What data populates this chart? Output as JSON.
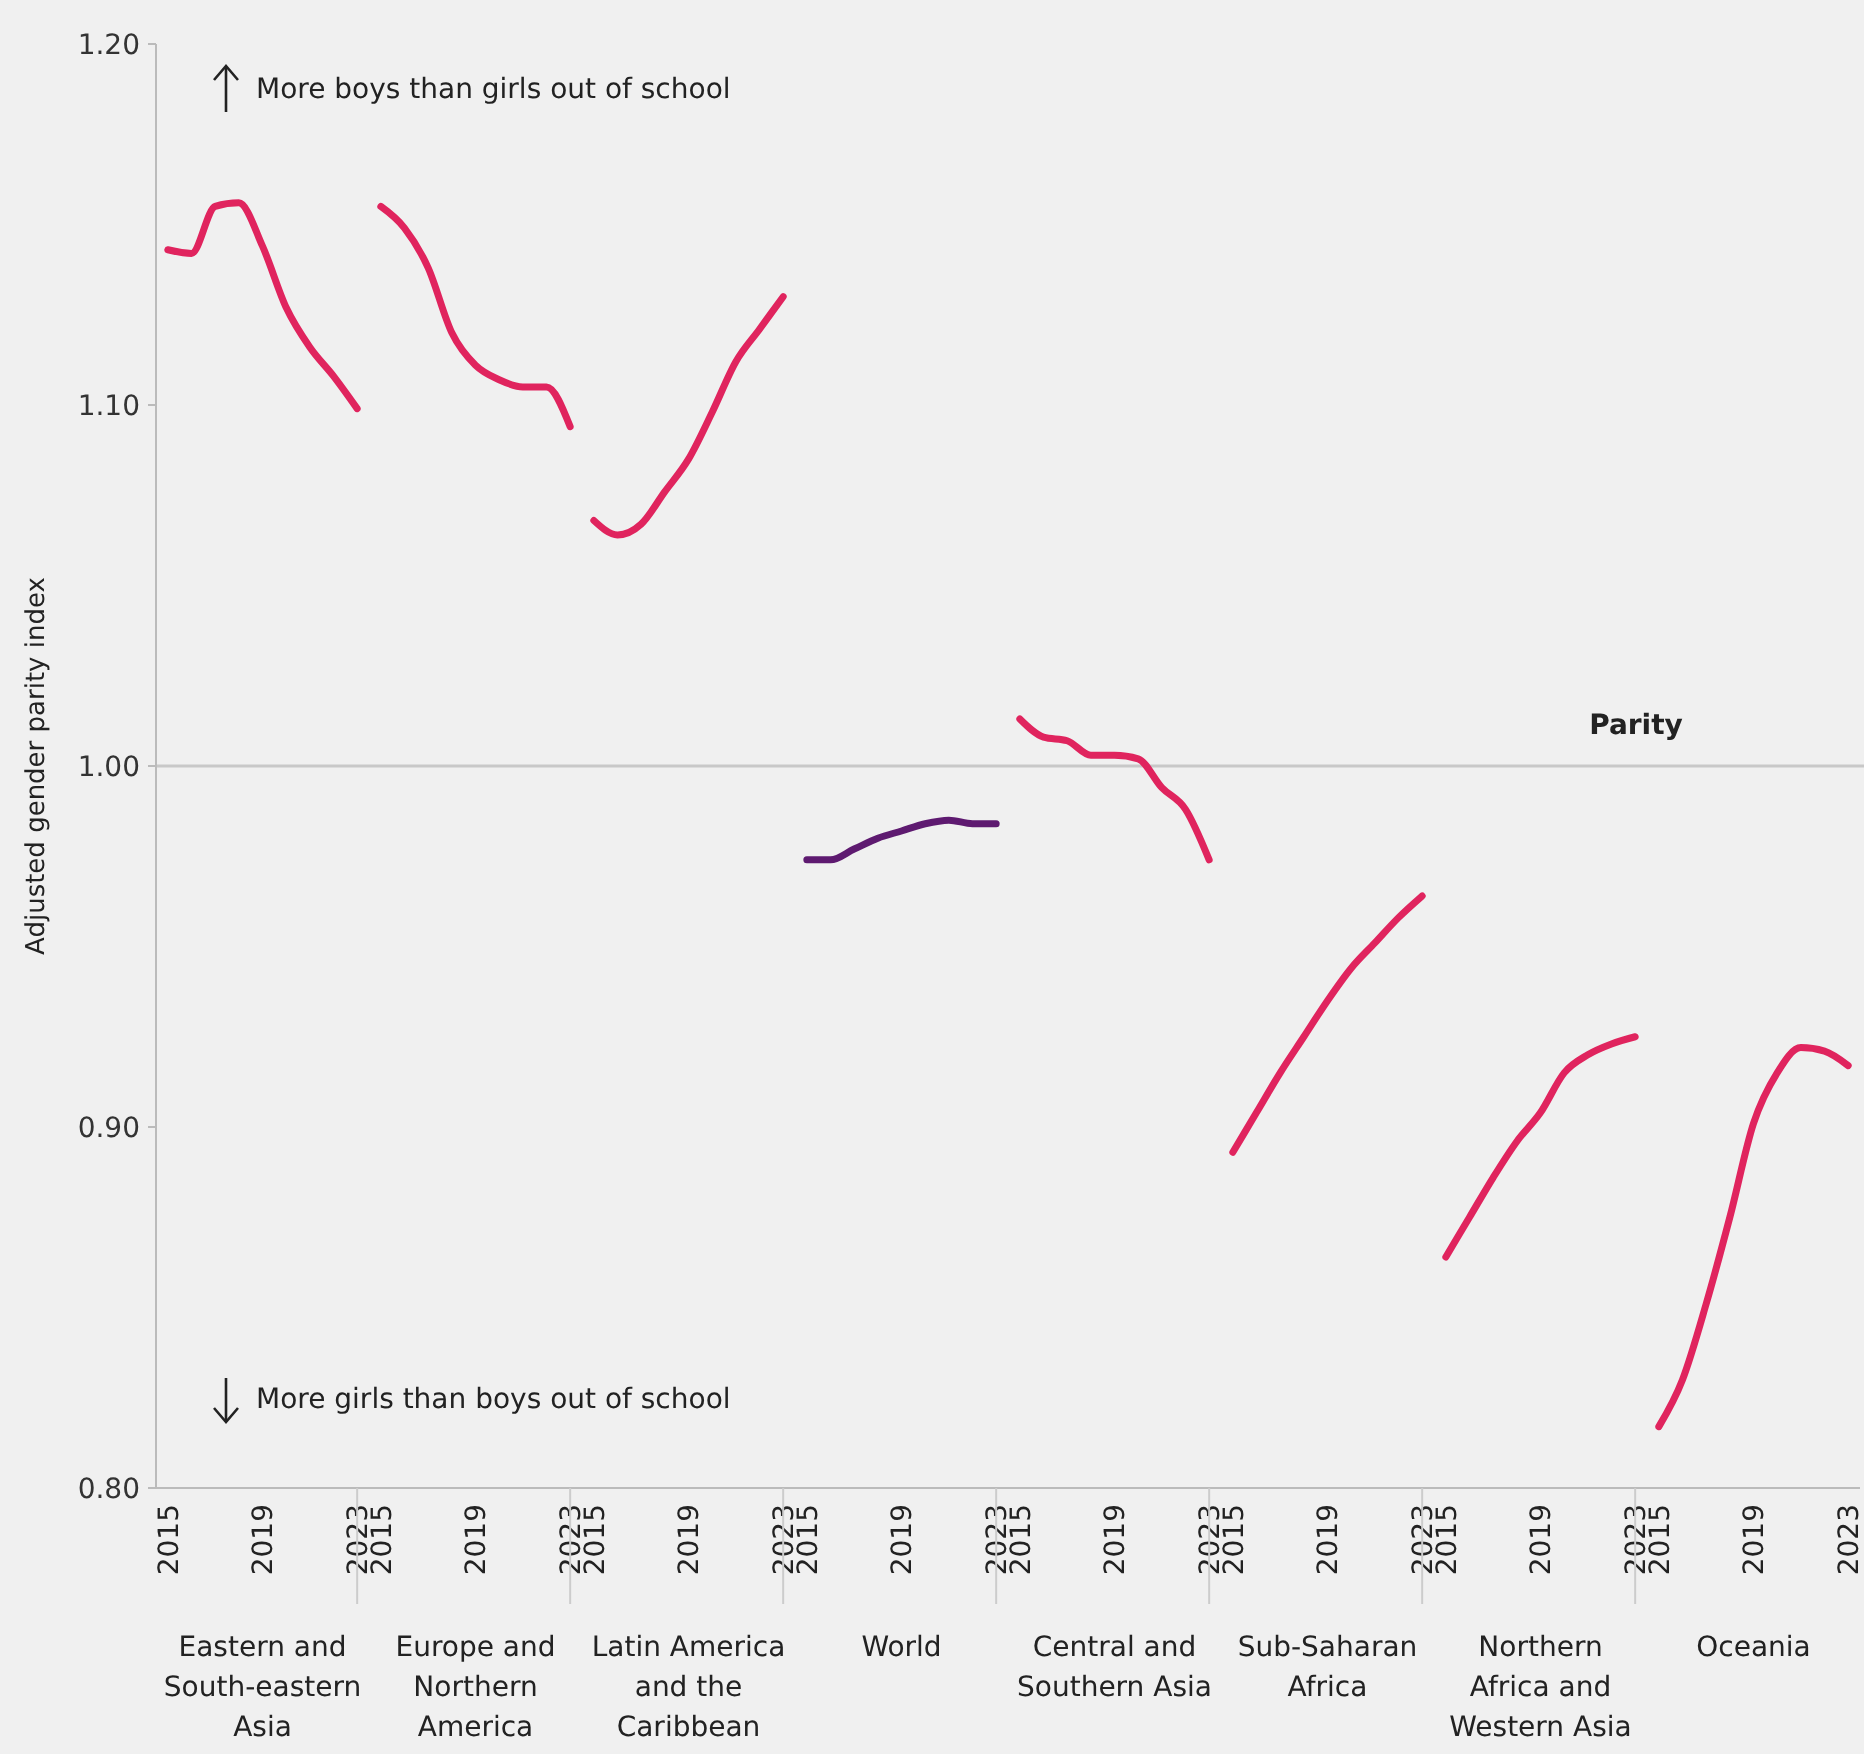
{
  "chart_data": {
    "type": "line",
    "ylabel": "Adjusted gender parity index",
    "categories": [
      "2015",
      null,
      null,
      null,
      "2019",
      null,
      null,
      null,
      "2023",
      "2015",
      null,
      null,
      null,
      "2019",
      null,
      null,
      null,
      "2023",
      "2015",
      null,
      null,
      null,
      "2019",
      null,
      null,
      null,
      "2023",
      "2015",
      null,
      null,
      null,
      "2019",
      null,
      null,
      null,
      "2023",
      "2015",
      null,
      null,
      null,
      "2019",
      null,
      null,
      null,
      "2023",
      "2015",
      null,
      null,
      null,
      "2019",
      null,
      null,
      null,
      "2023",
      "2015",
      null,
      null,
      null,
      "2019",
      null,
      null,
      null,
      "2023",
      "2015",
      null,
      null,
      null,
      "2019",
      null,
      null,
      null,
      "2023"
    ],
    "ylim": [
      0.8,
      1.2
    ],
    "yticks": [
      {
        "value": 0.8,
        "label": "0.80"
      },
      {
        "value": 0.9,
        "label": "0.90"
      },
      {
        "value": 1.0,
        "label": "1.00"
      },
      {
        "value": 1.1,
        "label": "1.10"
      },
      {
        "value": 1.2,
        "label": "1.20"
      }
    ],
    "grid": false,
    "marker": "none",
    "line_style": "solid",
    "ref_lines": [
      {
        "axis": "y",
        "value": 1.0,
        "label": "Parity",
        "color": "#c8c8c8"
      }
    ],
    "annotations": [
      "More boys than girls out of school",
      "More girls than boys out of school",
      "Eastern and South-eastern Asia",
      "Europe and Northern America",
      "Latin America and the Caribbean",
      "World",
      "Central and Southern Asia",
      "Sub-Saharan Africa",
      "Northern Africa and Western Asia",
      "Oceania"
    ],
    "series": [
      {
        "color": "#e0245e",
        "values": [
          1.143,
          1.142,
          1.155,
          1.156,
          1.144,
          1.127,
          1.116,
          1.108,
          1.099,
          null,
          null,
          null,
          null,
          null,
          null,
          null,
          null,
          null,
          null,
          null,
          null,
          null,
          null,
          null,
          null,
          null,
          null,
          null,
          null,
          null,
          null,
          null,
          null,
          null,
          null,
          null,
          null,
          null,
          null,
          null,
          null,
          null,
          null,
          null,
          null,
          null,
          null,
          null,
          null,
          null,
          null,
          null,
          null,
          null,
          null,
          null,
          null,
          null,
          null,
          null,
          null,
          null,
          null,
          null,
          null,
          null,
          null,
          null,
          null,
          null,
          null,
          null
        ]
      },
      {
        "color": "#e0245e",
        "values": [
          null,
          null,
          null,
          null,
          null,
          null,
          null,
          null,
          null,
          1.155,
          1.149,
          1.138,
          1.12,
          1.111,
          1.107,
          1.105,
          1.105,
          1.094,
          null,
          null,
          null,
          null,
          null,
          null,
          null,
          null,
          null,
          null,
          null,
          null,
          null,
          null,
          null,
          null,
          null,
          null,
          null,
          null,
          null,
          null,
          null,
          null,
          null,
          null,
          null,
          null,
          null,
          null,
          null,
          null,
          null,
          null,
          null,
          null,
          null,
          null,
          null,
          null,
          null,
          null,
          null,
          null,
          null,
          null,
          null,
          null,
          null,
          null,
          null,
          null,
          null,
          null
        ]
      },
      {
        "color": "#e0245e",
        "values": [
          null,
          null,
          null,
          null,
          null,
          null,
          null,
          null,
          null,
          null,
          null,
          null,
          null,
          null,
          null,
          null,
          null,
          null,
          1.068,
          1.064,
          1.067,
          1.076,
          1.085,
          1.098,
          1.112,
          1.121,
          1.13,
          null,
          null,
          null,
          null,
          null,
          null,
          null,
          null,
          null,
          null,
          null,
          null,
          null,
          null,
          null,
          null,
          null,
          null,
          null,
          null,
          null,
          null,
          null,
          null,
          null,
          null,
          null,
          null,
          null,
          null,
          null,
          null,
          null,
          null,
          null,
          null,
          null,
          null,
          null,
          null,
          null,
          null,
          null,
          null,
          null
        ]
      },
      {
        "color": "#5e1a70",
        "values": [
          null,
          null,
          null,
          null,
          null,
          null,
          null,
          null,
          null,
          null,
          null,
          null,
          null,
          null,
          null,
          null,
          null,
          null,
          null,
          null,
          null,
          null,
          null,
          null,
          null,
          null,
          null,
          0.974,
          0.974,
          0.977,
          0.98,
          0.982,
          0.984,
          0.985,
          0.984,
          0.984,
          null,
          null,
          null,
          null,
          null,
          null,
          null,
          null,
          null,
          null,
          null,
          null,
          null,
          null,
          null,
          null,
          null,
          null,
          null,
          null,
          null,
          null,
          null,
          null,
          null,
          null,
          null,
          null,
          null,
          null,
          null,
          null,
          null,
          null,
          null,
          null
        ]
      },
      {
        "color": "#e0245e",
        "values": [
          null,
          null,
          null,
          null,
          null,
          null,
          null,
          null,
          null,
          null,
          null,
          null,
          null,
          null,
          null,
          null,
          null,
          null,
          null,
          null,
          null,
          null,
          null,
          null,
          null,
          null,
          null,
          null,
          null,
          null,
          null,
          null,
          null,
          null,
          null,
          null,
          1.013,
          1.008,
          1.007,
          1.003,
          1.003,
          1.002,
          0.994,
          0.988,
          0.974,
          null,
          null,
          null,
          null,
          null,
          null,
          null,
          null,
          null,
          null,
          null,
          null,
          null,
          null,
          null,
          null,
          null,
          null,
          null,
          null,
          null,
          null,
          null,
          null,
          null,
          null,
          null
        ]
      },
      {
        "color": "#e0245e",
        "values": [
          null,
          null,
          null,
          null,
          null,
          null,
          null,
          null,
          null,
          null,
          null,
          null,
          null,
          null,
          null,
          null,
          null,
          null,
          null,
          null,
          null,
          null,
          null,
          null,
          null,
          null,
          null,
          null,
          null,
          null,
          null,
          null,
          null,
          null,
          null,
          null,
          null,
          null,
          null,
          null,
          null,
          null,
          null,
          null,
          null,
          0.893,
          0.904,
          0.915,
          0.925,
          0.935,
          0.944,
          0.951,
          0.958,
          0.964,
          null,
          null,
          null,
          null,
          null,
          null,
          null,
          null,
          null,
          null,
          null,
          null,
          null,
          null,
          null,
          null,
          null,
          null
        ]
      },
      {
        "color": "#e0245e",
        "values": [
          null,
          null,
          null,
          null,
          null,
          null,
          null,
          null,
          null,
          null,
          null,
          null,
          null,
          null,
          null,
          null,
          null,
          null,
          null,
          null,
          null,
          null,
          null,
          null,
          null,
          null,
          null,
          null,
          null,
          null,
          null,
          null,
          null,
          null,
          null,
          null,
          null,
          null,
          null,
          null,
          null,
          null,
          null,
          null,
          null,
          null,
          null,
          null,
          null,
          null,
          null,
          null,
          null,
          null,
          0.864,
          0.875,
          0.886,
          0.896,
          0.904,
          0.915,
          0.92,
          0.923,
          0.925,
          null,
          null,
          null,
          null,
          null,
          null,
          null,
          null,
          null
        ]
      },
      {
        "color": "#e0245e",
        "values": [
          null,
          null,
          null,
          null,
          null,
          null,
          null,
          null,
          null,
          null,
          null,
          null,
          null,
          null,
          null,
          null,
          null,
          null,
          null,
          null,
          null,
          null,
          null,
          null,
          null,
          null,
          null,
          null,
          null,
          null,
          null,
          null,
          null,
          null,
          null,
          null,
          null,
          null,
          null,
          null,
          null,
          null,
          null,
          null,
          null,
          null,
          null,
          null,
          null,
          null,
          null,
          null,
          null,
          null,
          null,
          null,
          null,
          null,
          null,
          null,
          null,
          null,
          null,
          0.817,
          0.83,
          0.851,
          0.875,
          0.901,
          0.915,
          0.922,
          0.921,
          0.917
        ]
      }
    ]
  }
}
